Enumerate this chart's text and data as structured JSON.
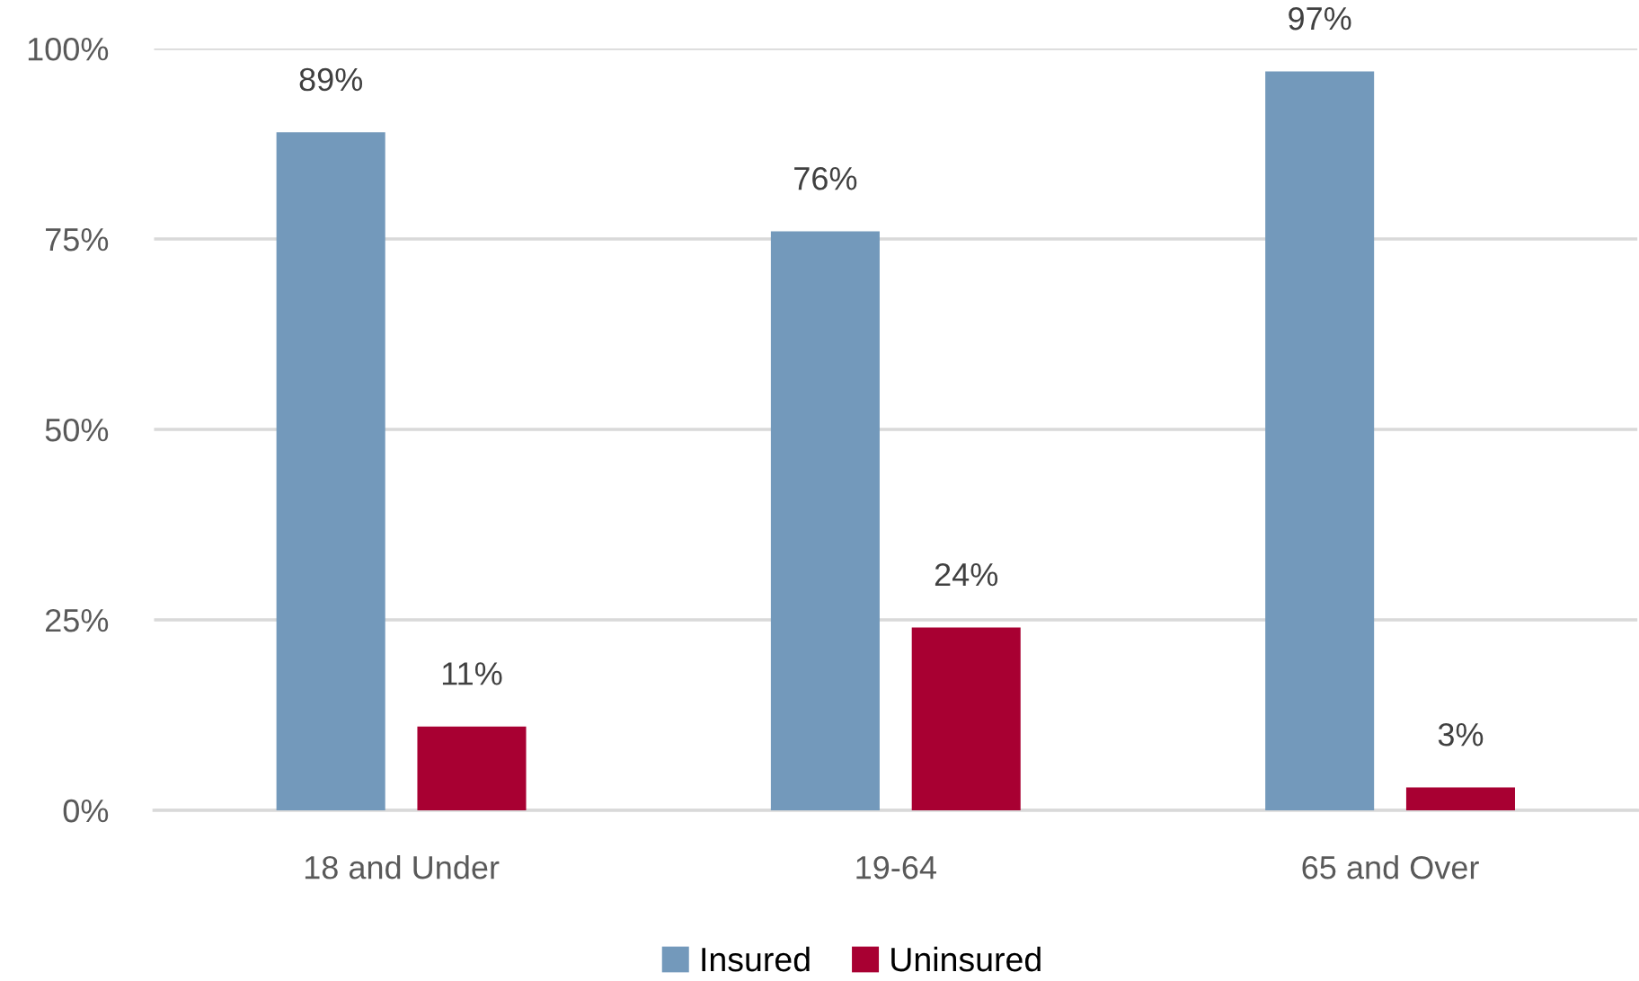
{
  "chart_data": {
    "type": "bar",
    "categories": [
      "18 and Under",
      "19-64",
      "65 and Over"
    ],
    "series": [
      {
        "name": "Insured",
        "color": "#7399bb",
        "values": [
          89,
          76,
          97
        ],
        "value_labels": [
          "89%",
          "76%",
          "97%"
        ]
      },
      {
        "name": "Uninsured",
        "color": "#a80032",
        "values": [
          11,
          24,
          3
        ],
        "value_labels": [
          "11%",
          "24%",
          "3%"
        ]
      }
    ],
    "ylim": [
      0,
      100
    ],
    "yticks": [
      {
        "value": 0,
        "label": "0%"
      },
      {
        "value": 25,
        "label": "25%"
      },
      {
        "value": 50,
        "label": "50%"
      },
      {
        "value": 75,
        "label": "75%"
      },
      {
        "value": 100,
        "label": "100%"
      }
    ],
    "grid": "y",
    "legend": "bottom"
  }
}
